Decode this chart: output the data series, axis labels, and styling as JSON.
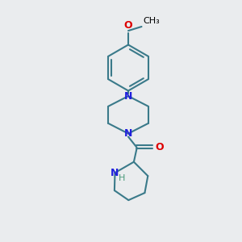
{
  "background_color": "#eaecee",
  "bond_color": "#3a7a8a",
  "bond_width": 1.5,
  "N_color": "#2020dd",
  "O_color": "#dd0000",
  "H_color": "#4a9a7a",
  "figsize": [
    3.0,
    3.0
  ],
  "dpi": 100,
  "xlim": [
    0,
    10
  ],
  "ylim": [
    0,
    10
  ]
}
